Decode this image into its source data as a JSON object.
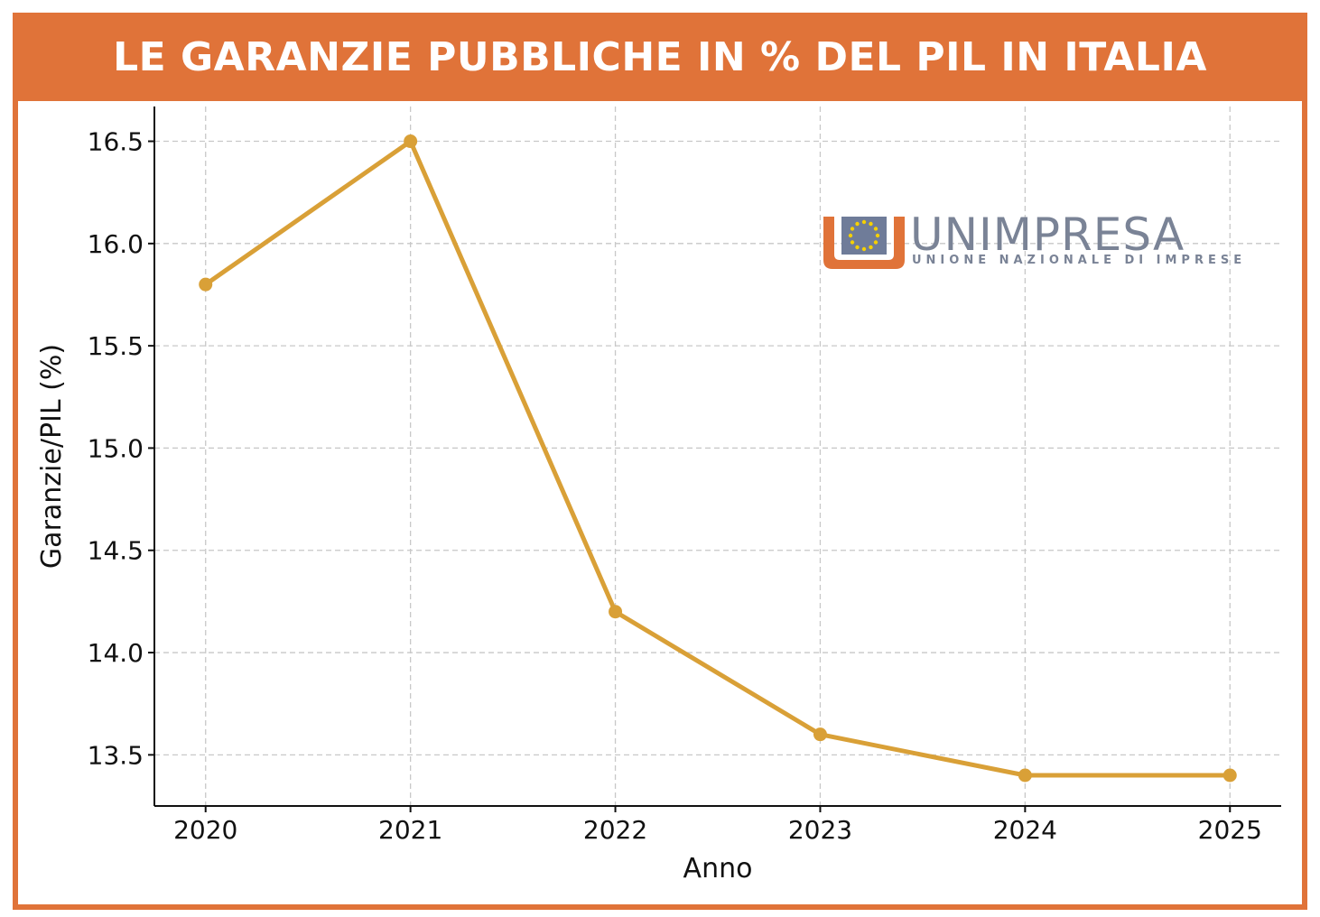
{
  "header": {
    "title": "LE GARANZIE PUBBLICHE IN % DEL PIL IN ITALIA"
  },
  "logo": {
    "name": "UNIMPRESA",
    "tagline": "UNIONE NAZIONALE DI IMPRESE",
    "icon": "eu-flag-cup-icon"
  },
  "colors": {
    "banner": "#e07339",
    "line": "#d9a037",
    "logo_text": "#7a8396",
    "logo_orange": "#e07339"
  },
  "chart_data": {
    "type": "line",
    "title": "LE GARANZIE PUBBLICHE IN % DEL PIL IN ITALIA",
    "xlabel": "Anno",
    "ylabel": "Garanzie/PIL (%)",
    "x": [
      2020,
      2021,
      2022,
      2023,
      2024,
      2025
    ],
    "series": [
      {
        "values": [
          15.8,
          16.5,
          14.2,
          13.6,
          13.4,
          13.4
        ]
      }
    ],
    "yticks": [
      "13.5",
      "14.0",
      "14.5",
      "15.0",
      "15.5",
      "16.0",
      "16.5"
    ],
    "xticks": [
      "2020",
      "2021",
      "2022",
      "2023",
      "2024",
      "2025"
    ],
    "ylim": [
      13.25,
      16.67
    ],
    "xlim": [
      2019.75,
      2025.25
    ],
    "grid": true,
    "legend": "none"
  }
}
